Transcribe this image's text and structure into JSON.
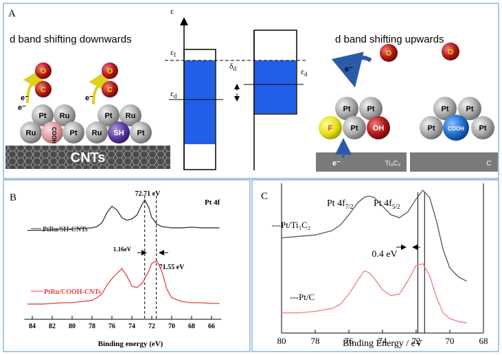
{
  "panel_a": {
    "label": "A",
    "left_title": "d band shifting downwards",
    "right_title": "d band shifting upwards",
    "energy": {
      "epsilon": "ε",
      "fermi": {
        "base": "ε",
        "sub": "f"
      },
      "d_left": {
        "base": "ε",
        "sub": "d"
      },
      "delta": {
        "base": "δ",
        "sub": "d"
      },
      "d_right": {
        "base": "ε",
        "sub": "d"
      }
    },
    "left_atoms": [
      "O",
      "C",
      "Pt",
      "Ru",
      "Ru",
      "COOH",
      "Pt",
      "O",
      "C",
      "Pt",
      "Ru",
      "Ru",
      "SH",
      "Pt"
    ],
    "left_electrons": [
      "e⁻",
      "e⁻",
      "e⁻"
    ],
    "left_substrate": "CNTs",
    "right_atoms": [
      "O",
      "Pt",
      "Pt",
      "F",
      "Pt",
      "OH",
      "O",
      "Pt",
      "Pt",
      "Pt",
      "COOH",
      "Pt"
    ],
    "right_electrons": [
      "e⁻",
      "e⁻"
    ],
    "right_substrates": [
      "Ti₃C₂",
      "C"
    ]
  },
  "panel_b": {
    "label": "B",
    "type": "line",
    "title": "Pt 4f",
    "xlabel": "Binding energy  (eV)",
    "xlim": [
      84.8,
      65
    ],
    "xticks": [
      84,
      82,
      80,
      78,
      76,
      74,
      72,
      70,
      68,
      66
    ],
    "ylim": [
      0,
      100
    ],
    "x": [
      84.5,
      83,
      82,
      81,
      80,
      79,
      78,
      77.5,
      77,
      76.5,
      76,
      75.5,
      75,
      74.5,
      74,
      73.5,
      73,
      72.7,
      72.3,
      72,
      71.5,
      71,
      70.5,
      70,
      69,
      68,
      67,
      66,
      65.2
    ],
    "series": [
      {
        "name": "PtRu/SH-CNTs",
        "color": "#333333",
        "values": [
          70,
          70,
          70.5,
          71,
          71,
          71.5,
          72,
          73,
          76,
          84,
          89,
          86,
          80,
          78,
          79,
          82,
          90,
          94,
          88,
          80,
          75,
          73,
          72.5,
          72,
          72,
          72.5,
          72,
          72,
          72
        ]
      },
      {
        "name": "PtRu/COOH-CNTs",
        "color": "#e8413c",
        "values": [
          12,
          12,
          12.5,
          13,
          13,
          14,
          15,
          17,
          20,
          27,
          32,
          36,
          40,
          34,
          26,
          25,
          28,
          32,
          38,
          44,
          46,
          38,
          24,
          17,
          14,
          13,
          13,
          12.5,
          12.5
        ]
      }
    ],
    "vlines": [
      72.71,
      71.55
    ],
    "annotations": [
      "72.71 eV",
      "1.16eV",
      "71.55 eV"
    ]
  },
  "panel_c": {
    "label": "C",
    "type": "line",
    "xlabel": "Binding Energy / eV",
    "xlim": [
      80,
      68
    ],
    "xticks": [
      80,
      78,
      76,
      74,
      72,
      70,
      68
    ],
    "ylim": [
      0,
      100
    ],
    "x": [
      80,
      79,
      78,
      77,
      76.5,
      76,
      75.5,
      75.1,
      74.8,
      74.5,
      74,
      73.5,
      73,
      72.5,
      72,
      71.6,
      71.2,
      70.8,
      70.4,
      70,
      69.5,
      69
    ],
    "series": [
      {
        "name": "---Pt/Ti₃C₂",
        "color": "#555555",
        "values": [
          66,
          67,
          68,
          71,
          75,
          82,
          90,
          94,
          95,
          94,
          88,
          82,
          80,
          84,
          93,
          99,
          94,
          78,
          58,
          45,
          39,
          36
        ]
      },
      {
        "name": "---Pt/C",
        "color": "#ef7b7b",
        "values": [
          14,
          14,
          15,
          17,
          20,
          27,
          36,
          43,
          42,
          38,
          30,
          26,
          27,
          36,
          47,
          48,
          40,
          25,
          14,
          10,
          8,
          7
        ]
      }
    ],
    "vlines": [
      71.9,
      71.5
    ],
    "peaks": [
      {
        "base": "Pt 4f",
        "sub": "7/2"
      },
      {
        "base": "Pt 4f",
        "sub": "5/2"
      }
    ],
    "annotation": "0.4 eV"
  }
}
